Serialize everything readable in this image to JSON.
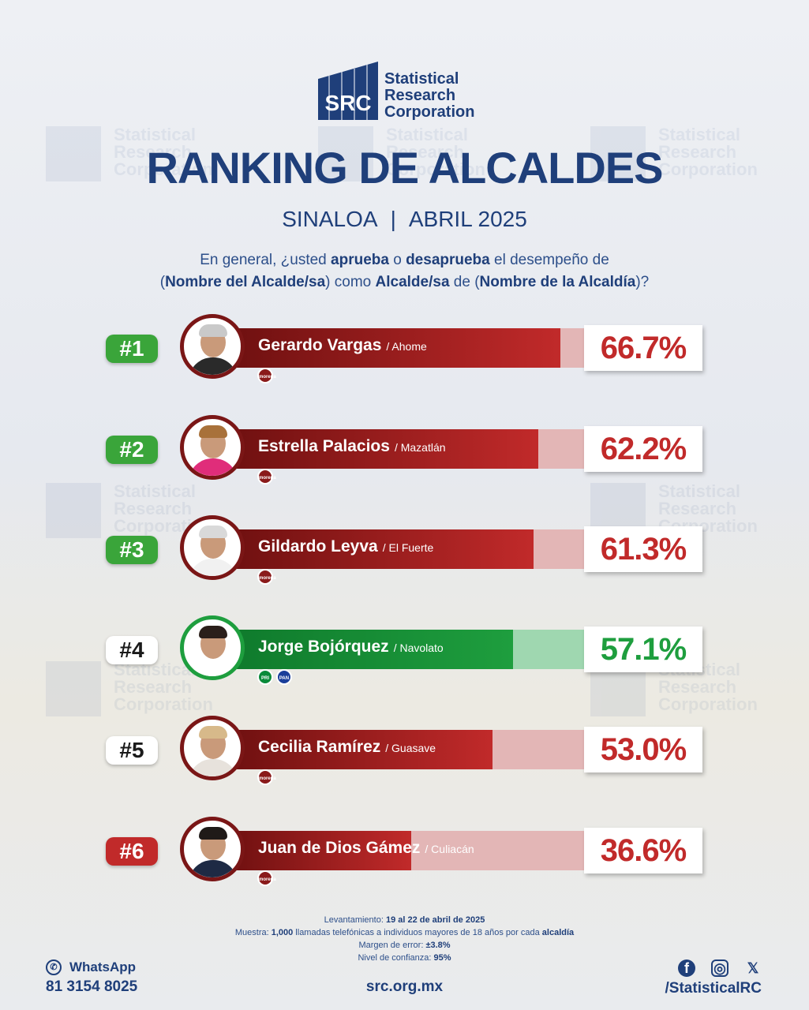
{
  "brand": {
    "abbr": "SRC",
    "line1": "Statistical",
    "line2": "Research",
    "line3": "Corporation",
    "color": "#1f3f7a"
  },
  "title": "RANKING DE ALCALDES",
  "subtitle": {
    "state": "SINALOA",
    "separator": "|",
    "period": "ABRIL 2025"
  },
  "question": {
    "p1": "En general, ¿usted ",
    "b1": "aprueba",
    "p2": " o ",
    "b2": "desaprueba",
    "p3": " el desempeño de",
    "p4": "(",
    "b3": "Nombre del Alcalde/sa",
    "p5": ") como ",
    "b4": "Alcalde/sa",
    "p6": " de (",
    "b5": "Nombre de la Alcaldía",
    "p7": ")?"
  },
  "ranking": [
    {
      "rank": "#1",
      "name": "Gerardo Vargas",
      "city": "/ Ahome",
      "pct": "66.7%",
      "value": 66.7,
      "rank_style": "green",
      "bar_style": "red",
      "parties": [
        "morena"
      ]
    },
    {
      "rank": "#2",
      "name": "Estrella Palacios",
      "city": "/ Mazatlán",
      "pct": "62.2%",
      "value": 62.2,
      "rank_style": "green",
      "bar_style": "red",
      "parties": [
        "morena"
      ]
    },
    {
      "rank": "#3",
      "name": "Gildardo Leyva",
      "city": "/ El Fuerte",
      "pct": "61.3%",
      "value": 61.3,
      "rank_style": "green",
      "bar_style": "red",
      "parties": [
        "morena"
      ]
    },
    {
      "rank": "#4",
      "name": "Jorge Bojórquez",
      "city": "/ Navolato",
      "pct": "57.1%",
      "value": 57.1,
      "rank_style": "white",
      "bar_style": "green",
      "parties": [
        "PRI",
        "PAN"
      ]
    },
    {
      "rank": "#5",
      "name": "Cecilia Ramírez",
      "city": "/ Guasave",
      "pct": "53.0%",
      "value": 53.0,
      "rank_style": "white",
      "bar_style": "red",
      "parties": [
        "morena"
      ]
    },
    {
      "rank": "#6",
      "name": "Juan de Dios Gámez",
      "city": "/ Culiacán",
      "pct": "36.6%",
      "value": 36.6,
      "rank_style": "red",
      "bar_style": "red",
      "parties": [
        "morena"
      ]
    }
  ],
  "methodology": {
    "l1_label": "Levantamiento: ",
    "l1_value": "19 al 22 de abril de 2025",
    "l2_label": "Muestra: ",
    "l2_b1": "1,000",
    "l2_text": " llamadas telefónicas a individuos mayores de 18 años por cada ",
    "l2_b2": "alcaldía",
    "l3_label": "Margen de error: ",
    "l3_value": "±3.8%",
    "l4_label": "Nivel de confianza: ",
    "l4_value": "95%"
  },
  "contact": {
    "whatsapp_label": "WhatsApp",
    "phone": "81 3154 8025",
    "website": "src.org.mx",
    "handle": "/StatisticalRC",
    "icons": [
      "facebook-icon",
      "instagram-icon",
      "x-icon"
    ]
  },
  "colors": {
    "green": "#3aa53a",
    "red_dark": "#6e1010",
    "red": "#c12a2a",
    "red_light": "#e3b6b6",
    "green_bar": "#1e9e3e",
    "green_light": "#9fd7b0"
  }
}
